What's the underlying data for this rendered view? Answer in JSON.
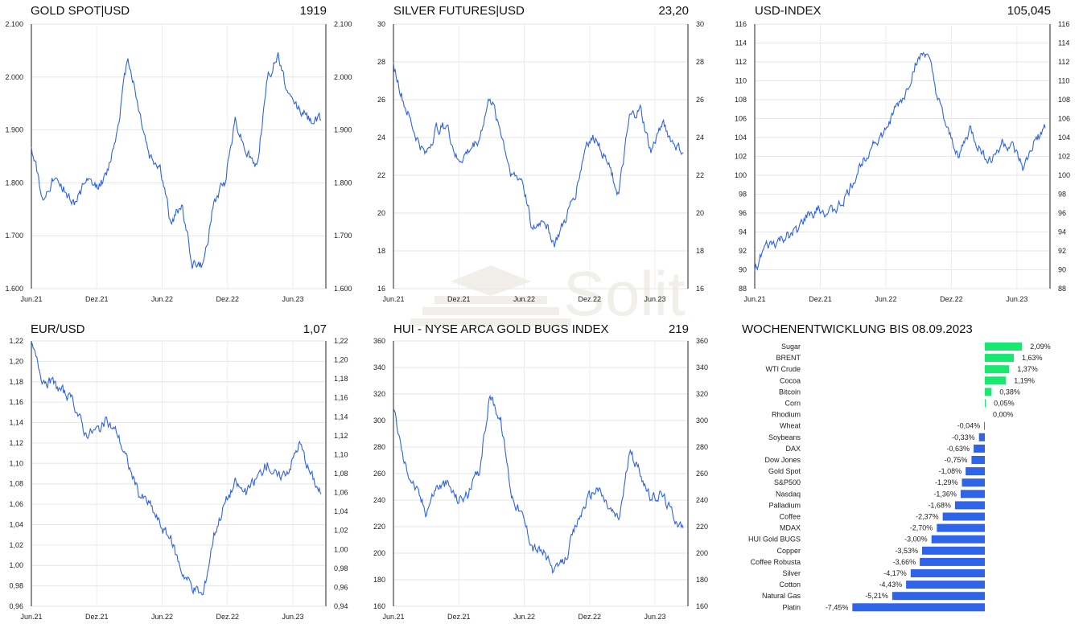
{
  "watermark": {
    "text": "Solit"
  },
  "colors": {
    "line": "#2f63e8",
    "positive_bar": "#18e86f",
    "negative_bar": "#2f63e8",
    "grid": "#e6e6e6"
  },
  "chart_data": [
    {
      "id": "gold",
      "type": "line",
      "title": "GOLD SPOT|USD",
      "last_value": "1919",
      "x_ticks": [
        "Jun.21",
        "Dez.21",
        "Jun.22",
        "Dez.22",
        "Jun.23"
      ],
      "y_ticks": [
        "1.600",
        "1.700",
        "1.800",
        "1.900",
        "2.000",
        "2.100"
      ],
      "ylim": [
        1600,
        2100
      ],
      "grid": true,
      "series": [
        {
          "x": [
            "Jun.21",
            "Jul.21",
            "Aug.21",
            "Sep.21",
            "Okt.21",
            "Nov.21",
            "Dez.21",
            "Jan.22",
            "Feb.22",
            "Mär.22",
            "Apr.22",
            "Mai.22",
            "Jun.22",
            "Jul.22",
            "Aug.22",
            "Sep.22",
            "Okt.22",
            "Nov.22",
            "Dez.22",
            "Jan.23",
            "Feb.23",
            "Mär.23",
            "Apr.23",
            "Mai.23",
            "Jun.23",
            "Jul.23",
            "Aug.23",
            "Sep.23"
          ],
          "values": [
            1870,
            1770,
            1810,
            1790,
            1760,
            1800,
            1790,
            1810,
            1900,
            2040,
            1940,
            1850,
            1830,
            1720,
            1760,
            1650,
            1640,
            1760,
            1800,
            1920,
            1860,
            1830,
            2000,
            2040,
            1960,
            1940,
            1920,
            1919
          ]
        }
      ]
    },
    {
      "id": "silver",
      "type": "line",
      "title": "SILVER FUTURES|USD",
      "last_value": "23,20",
      "x_ticks": [
        "Jun.21",
        "Dez.21",
        "Jun.22",
        "Dez.22",
        "Jun.23"
      ],
      "y_ticks": [
        "16",
        "18",
        "20",
        "22",
        "24",
        "26",
        "28",
        "30"
      ],
      "ylim": [
        16,
        30
      ],
      "grid": true,
      "series": [
        {
          "x": [
            "Jun.21",
            "Jul.21",
            "Aug.21",
            "Sep.21",
            "Okt.21",
            "Nov.21",
            "Dez.21",
            "Jan.22",
            "Feb.22",
            "Mär.22",
            "Apr.22",
            "Mai.22",
            "Jun.22",
            "Jul.22",
            "Aug.22",
            "Sep.22",
            "Okt.22",
            "Nov.22",
            "Dez.22",
            "Jan.23",
            "Feb.23",
            "Mär.23",
            "Apr.23",
            "Mai.23",
            "Jun.23",
            "Jul.23",
            "Aug.23",
            "Sep.23"
          ],
          "values": [
            27.8,
            25.8,
            24.2,
            23.0,
            24.5,
            24.6,
            22.7,
            23.3,
            24.0,
            26.2,
            24.4,
            22.0,
            21.8,
            19.0,
            19.8,
            18.4,
            19.6,
            21.2,
            23.8,
            24.0,
            22.5,
            21.0,
            25.0,
            25.5,
            23.2,
            24.8,
            23.8,
            23.2
          ]
        }
      ]
    },
    {
      "id": "usd",
      "type": "line",
      "title": "USD-INDEX",
      "last_value": "105,045",
      "x_ticks": [
        "Jun.21",
        "Dez.21",
        "Jun.22",
        "Dez.22",
        "Jun.23"
      ],
      "y_ticks": [
        "88",
        "90",
        "92",
        "94",
        "96",
        "98",
        "100",
        "102",
        "104",
        "106",
        "108",
        "110",
        "112",
        "114",
        "116"
      ],
      "ylim": [
        88,
        116
      ],
      "grid": true,
      "series": [
        {
          "x": [
            "Jun.21",
            "Jul.21",
            "Aug.21",
            "Sep.21",
            "Okt.21",
            "Nov.21",
            "Dez.21",
            "Jan.22",
            "Feb.22",
            "Mär.22",
            "Apr.22",
            "Mai.22",
            "Jun.22",
            "Jul.22",
            "Aug.22",
            "Sep.22",
            "Okt.22",
            "Nov.22",
            "Dez.22",
            "Jan.23",
            "Feb.23",
            "Mär.23",
            "Apr.23",
            "Mai.23",
            "Jun.23",
            "Jul.23",
            "Aug.23",
            "Sep.23"
          ],
          "values": [
            90.0,
            92.3,
            92.8,
            93.5,
            94.2,
            95.8,
            96.4,
            96.0,
            96.8,
            98.8,
            101.5,
            103.5,
            104.2,
            106.8,
            108.5,
            112.0,
            113.0,
            108.0,
            104.2,
            102.0,
            104.8,
            102.5,
            101.5,
            103.5,
            102.8,
            100.5,
            103.5,
            105.0
          ]
        }
      ]
    },
    {
      "id": "eurusd",
      "type": "line",
      "title": "EUR/USD",
      "last_value": "1,07",
      "x_ticks": [
        "Jun.21",
        "Dez.21",
        "Jun.22",
        "Dez.22",
        "Jun.23"
      ],
      "y_ticks_left": [
        "0,96",
        "0,98",
        "1,00",
        "1,02",
        "1,04",
        "1,06",
        "1,08",
        "1,10",
        "1,12",
        "1,14",
        "1,16",
        "1,18",
        "1,20",
        "1,22"
      ],
      "y_ticks_right": [
        "0,94",
        "0,96",
        "0,98",
        "1,00",
        "1,02",
        "1,04",
        "1,06",
        "1,08",
        "1,10",
        "1,12",
        "1,14",
        "1,16",
        "1,18",
        "1,20",
        "1,22"
      ],
      "ylim": [
        0.96,
        1.22
      ],
      "ylim_right": [
        0.94,
        1.22
      ],
      "grid": true,
      "series": [
        {
          "x": [
            "Jun.21",
            "Jul.21",
            "Aug.21",
            "Sep.21",
            "Okt.21",
            "Nov.21",
            "Dez.21",
            "Jan.22",
            "Feb.22",
            "Mär.22",
            "Apr.22",
            "Mai.22",
            "Jun.22",
            "Jul.22",
            "Aug.22",
            "Sep.22",
            "Okt.22",
            "Nov.22",
            "Dez.22",
            "Jan.23",
            "Feb.23",
            "Mär.23",
            "Apr.23",
            "Mai.23",
            "Jun.23",
            "Jul.23",
            "Aug.23",
            "Sep.23"
          ],
          "values": [
            1.215,
            1.185,
            1.178,
            1.17,
            1.158,
            1.13,
            1.132,
            1.14,
            1.13,
            1.1,
            1.07,
            1.06,
            1.04,
            1.025,
            0.995,
            0.98,
            0.97,
            1.03,
            1.06,
            1.08,
            1.07,
            1.085,
            1.1,
            1.085,
            1.095,
            1.12,
            1.09,
            1.07
          ]
        }
      ]
    },
    {
      "id": "hui",
      "type": "line",
      "title": "HUI - NYSE ARCA GOLD BUGS INDEX",
      "last_value": "219",
      "x_ticks": [
        "Jun.21",
        "Dez.21",
        "Jun.22",
        "Dez.22",
        "Jun.23"
      ],
      "y_ticks": [
        "160",
        "180",
        "200",
        "220",
        "240",
        "260",
        "280",
        "300",
        "320",
        "340",
        "360"
      ],
      "ylim": [
        160,
        360
      ],
      "grid": true,
      "series": [
        {
          "x": [
            "Jun.21",
            "Jul.21",
            "Aug.21",
            "Sep.21",
            "Okt.21",
            "Nov.21",
            "Dez.21",
            "Jan.22",
            "Feb.22",
            "Mär.22",
            "Apr.22",
            "Mai.22",
            "Jun.22",
            "Jul.22",
            "Aug.22",
            "Sep.22",
            "Okt.22",
            "Nov.22",
            "Dez.22",
            "Jan.23",
            "Feb.23",
            "Mär.23",
            "Apr.23",
            "Mai.23",
            "Jun.23",
            "Jul.23",
            "Aug.23",
            "Sep.23"
          ],
          "values": [
            310,
            268,
            250,
            232,
            250,
            252,
            240,
            245,
            262,
            320,
            300,
            245,
            228,
            205,
            200,
            185,
            195,
            220,
            240,
            250,
            235,
            225,
            275,
            262,
            240,
            245,
            230,
            219
          ]
        }
      ]
    },
    {
      "id": "weekly",
      "type": "bar",
      "title": "WOCHENENTWICKLUNG BIS  08.09.2023",
      "categories": [
        "Sugar",
        "BRENT",
        "WTI Crude",
        "Cocoa",
        "Bitcoin",
        "Corn",
        "Rhodium",
        "Wheat",
        "Soybeans",
        "DAX",
        "Dow Jones",
        "Gold Spot",
        "S&P500",
        "Nasdaq",
        "Palladium",
        "Coffee",
        "MDAX",
        "HUI Gold BUGS",
        "Copper",
        "Coffee Robusta",
        "Silver",
        "Cotton",
        "Natural Gas",
        "Platin"
      ],
      "values": [
        2.09,
        1.63,
        1.37,
        1.19,
        0.38,
        0.05,
        0.0,
        -0.04,
        -0.33,
        -0.63,
        -0.75,
        -1.08,
        -1.29,
        -1.36,
        -1.68,
        -2.37,
        -2.7,
        -3.0,
        -3.53,
        -3.66,
        -4.17,
        -4.43,
        -5.21,
        -7.45
      ],
      "labels": [
        "2,09%",
        "1,63%",
        "1,37%",
        "1,19%",
        "0,38%",
        "0,05%",
        "0,00%",
        "-0,04%",
        "-0,33%",
        "-0,63%",
        "-0,75%",
        "-1,08%",
        "-1,29%",
        "-1,36%",
        "-1,68%",
        "-2,37%",
        "-2,70%",
        "-3,00%",
        "-3,53%",
        "-3,66%",
        "-4,17%",
        "-4,43%",
        "-5,21%",
        "-7,45%"
      ]
    }
  ]
}
